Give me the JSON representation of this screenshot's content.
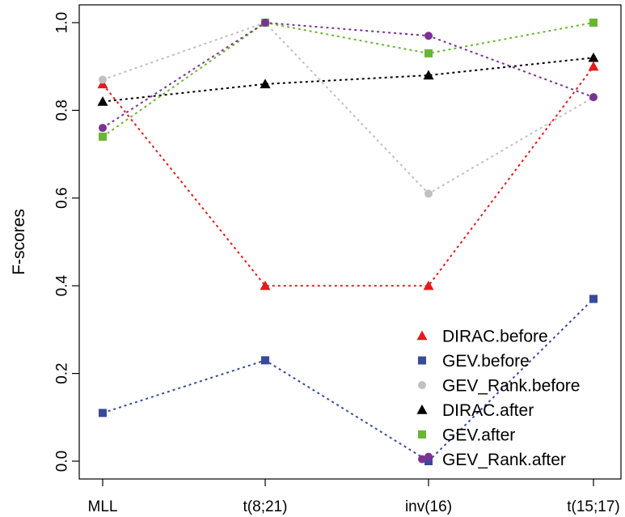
{
  "chart_data": {
    "type": "line",
    "title": "",
    "xlabel": "",
    "ylabel": "F-scores",
    "categories": [
      "MLL",
      "t(8;21)",
      "inv(16)",
      "t(15;17)"
    ],
    "ylim": [
      0.0,
      1.0
    ],
    "yticks": [
      "0.0",
      "0.2",
      "0.4",
      "0.6",
      "0.8",
      "1.0"
    ],
    "legend_position": "bottom-right",
    "grid": false,
    "series": [
      {
        "name": "DIRAC.before",
        "values": [
          0.86,
          0.4,
          0.4,
          0.9
        ],
        "color": "#e41a1c",
        "marker": "triangle"
      },
      {
        "name": "GEV.before",
        "values": [
          0.11,
          0.23,
          0.0,
          0.37
        ],
        "color": "#3a4a9a",
        "marker": "square"
      },
      {
        "name": "GEV_Rank.before",
        "values": [
          0.87,
          1.0,
          0.61,
          0.83
        ],
        "color": "#c0c0c0",
        "marker": "circle"
      },
      {
        "name": "DIRAC.after",
        "values": [
          0.82,
          0.86,
          0.88,
          0.92
        ],
        "color": "#000000",
        "marker": "triangle"
      },
      {
        "name": "GEV.after",
        "values": [
          0.74,
          1.0,
          0.93,
          1.0
        ],
        "color": "#6ab536",
        "marker": "square"
      },
      {
        "name": "GEV_Rank.after",
        "values": [
          0.76,
          1.0,
          0.97,
          0.83
        ],
        "color": "#7b3294",
        "marker": "circle"
      }
    ],
    "extra_points": [
      {
        "series": "GEV_Rank.after",
        "category": "inv(16)",
        "value": 0.01
      }
    ]
  }
}
